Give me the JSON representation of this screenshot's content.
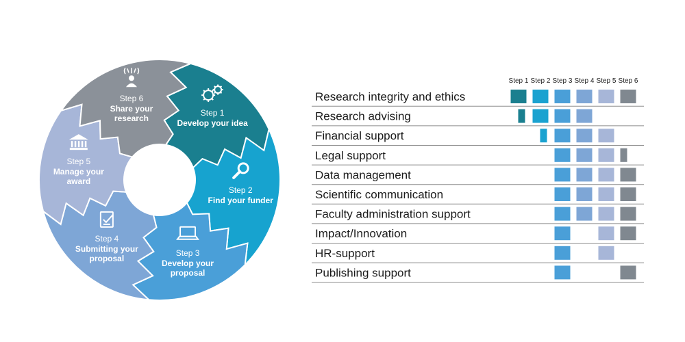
{
  "wheel": {
    "segments": [
      {
        "step": "Step 1",
        "title": [
          "Develop your idea"
        ],
        "color": "#1a7f8f",
        "icon": "gears-icon"
      },
      {
        "step": "Step 2",
        "title": [
          "Find your funder"
        ],
        "color": "#17a3cf",
        "icon": "magnifier-icon"
      },
      {
        "step": "Step 3",
        "title": [
          "Develop your",
          "proposal"
        ],
        "color": "#4a9fd8",
        "icon": "laptop-icon"
      },
      {
        "step": "Step 4",
        "title": [
          "Submitting your",
          "proposal"
        ],
        "color": "#7ea6d6",
        "icon": "checklist-icon"
      },
      {
        "step": "Step 5",
        "title": [
          "Manage your",
          "award"
        ],
        "color": "#a7b6d8",
        "icon": "building-icon"
      },
      {
        "step": "Step 6",
        "title": [
          "Share your",
          "research"
        ],
        "color": "#8b9199",
        "icon": "person-broadcast-icon"
      }
    ]
  },
  "matrix": {
    "columns": [
      "Step 1",
      "Step 2",
      "Step 3",
      "Step 4",
      "Step 5",
      "Step 6"
    ],
    "column_colors": [
      "#1a7f8f",
      "#1aa2d0",
      "#4a9fd8",
      "#7ea6d6",
      "#a7b6d8",
      "#808890"
    ],
    "rows": [
      {
        "label": "Research integrity and ethics",
        "cells": [
          "full",
          "full",
          "full",
          "full",
          "full",
          "full"
        ]
      },
      {
        "label": "Research advising",
        "cells": [
          "narrow",
          "full",
          "full",
          "full",
          "none",
          "none"
        ]
      },
      {
        "label": "Financial support",
        "cells": [
          "none",
          "narrow",
          "full",
          "full",
          "full",
          "none"
        ]
      },
      {
        "label": "Legal support",
        "cells": [
          "none",
          "none",
          "full",
          "full",
          "full",
          "narrow"
        ]
      },
      {
        "label": "Data management",
        "cells": [
          "none",
          "none",
          "full",
          "full",
          "full",
          "full"
        ]
      },
      {
        "label": "Scientific communication",
        "cells": [
          "none",
          "none",
          "full",
          "full",
          "full",
          "full"
        ]
      },
      {
        "label": "Faculty administration support",
        "cells": [
          "none",
          "none",
          "full",
          "full",
          "full",
          "full"
        ]
      },
      {
        "label": "Impact/Innovation",
        "cells": [
          "none",
          "none",
          "full",
          "none",
          "full",
          "full"
        ]
      },
      {
        "label": "HR-support",
        "cells": [
          "none",
          "none",
          "full",
          "none",
          "full",
          "none"
        ]
      },
      {
        "label": "Publishing support",
        "cells": [
          "none",
          "none",
          "full",
          "none",
          "none",
          "full"
        ]
      }
    ]
  }
}
